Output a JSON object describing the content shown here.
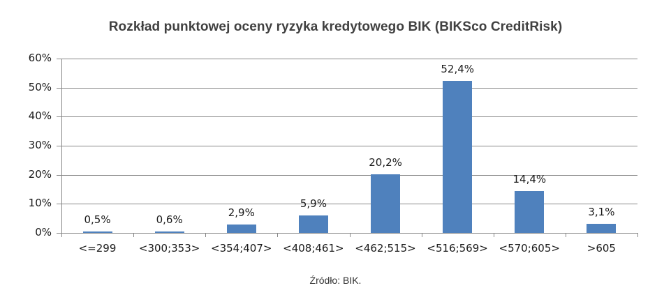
{
  "chart_data": {
    "type": "bar",
    "title": "Rozkład punktowej oceny ryzyka kredytowego BIK (BIKSco CreditRisk)",
    "xlabel": "",
    "ylabel": "",
    "categories": [
      "<=299",
      "<300;353>",
      "<354;407>",
      "<408;461>",
      "<462;515>",
      "<516;569>",
      "<570;605>",
      ">605"
    ],
    "values": [
      0.5,
      0.6,
      2.9,
      5.9,
      20.2,
      52.4,
      14.4,
      3.1
    ],
    "value_labels": [
      "0,5%",
      "0,6%",
      "2,9%",
      "5,9%",
      "20,2%",
      "52,4%",
      "14,4%",
      "3,1%"
    ],
    "ylim": [
      0,
      60
    ],
    "yticks": [
      0,
      10,
      20,
      30,
      40,
      50,
      60
    ],
    "ytick_labels": [
      "0%",
      "10%",
      "20%",
      "30%",
      "40%",
      "50%",
      "60%"
    ],
    "grid": true,
    "legend": null,
    "bar_color": "#4f81bd",
    "source": "Źródło: BIK."
  }
}
